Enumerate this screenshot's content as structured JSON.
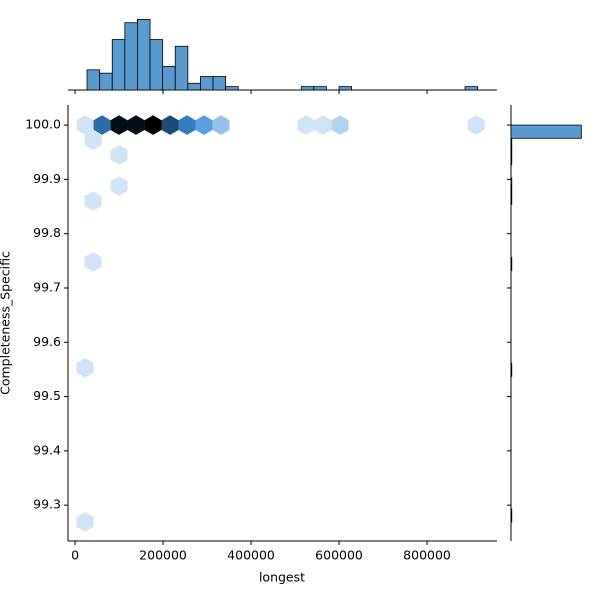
{
  "chart_data": [
    {
      "type": "hexbin",
      "xlabel": "longest",
      "ylabel": "Completeness_Specific",
      "x": [
        22700,
        61400,
        100000,
        138600,
        177300,
        215900,
        254500,
        293200,
        331800,
        525000,
        563600,
        602300,
        911400,
        41000,
        100000,
        100000,
        41000,
        41000,
        22700,
        22700
      ],
      "y": [
        100,
        100,
        100,
        100,
        100,
        100,
        100,
        100,
        100,
        100,
        100,
        100,
        100,
        99.972,
        99.945,
        99.888,
        99.86,
        99.748,
        99.553,
        99.269
      ],
      "values": [
        1,
        8,
        16,
        16,
        18,
        10,
        7,
        5,
        3,
        1,
        1,
        2,
        1,
        1,
        1,
        1,
        1,
        1,
        1,
        1
      ],
      "colors": [
        "#eef5fc",
        "#3a8fd9",
        "#0b2a45",
        "#000000"
      ],
      "xlim": [
        -16000,
        959000
      ],
      "ylim": [
        99.234,
        100.037
      ],
      "xticks": [
        0,
        200000,
        400000,
        600000,
        800000
      ],
      "yticks": [
        99.3,
        99.4,
        99.5,
        99.6,
        99.7,
        99.8,
        99.9,
        {
          "value": 100,
          "label": "100.0"
        }
      ]
    },
    {
      "type": "histogram",
      "color": "#5a9bcf",
      "ylim": [
        0,
        22
      ],
      "bins": [
        27270,
        55906,
        84542,
        113178,
        141814,
        170450,
        199086,
        227722,
        256358,
        284994,
        313630,
        342266,
        370902,
        399538,
        428174,
        456810,
        485446,
        514082,
        542718,
        571354,
        599990,
        628626,
        657262,
        685898,
        714534,
        743170,
        771806,
        800442,
        829078,
        857714,
        886350,
        914986
      ],
      "values": [
        6,
        5,
        15,
        20,
        21,
        15,
        7,
        13,
        2,
        4,
        4,
        1,
        0,
        0,
        0,
        0,
        0,
        1,
        1,
        0,
        1,
        0,
        0,
        0,
        0,
        0,
        0,
        0,
        0,
        0,
        1
      ]
    },
    {
      "type": "histogram",
      "orientation": "horizontal",
      "color": "#5a9bcf",
      "xlim": [
        0,
        100
      ],
      "bins": [
        99.269,
        99.2934,
        99.3177,
        99.3421,
        99.3665,
        99.3909,
        99.4152,
        99.4396,
        99.464,
        99.4883,
        99.5127,
        99.5371,
        99.5614,
        99.5858,
        99.6102,
        99.6346,
        99.6589,
        99.6833,
        99.7077,
        99.732,
        99.7564,
        99.7808,
        99.8051,
        99.8295,
        99.8539,
        99.8783,
        99.9026,
        99.927,
        99.9514,
        99.9757,
        100.0
      ],
      "values": [
        1,
        0,
        0,
        0,
        0,
        0,
        0,
        0,
        0,
        0,
        0,
        1,
        0,
        0,
        0,
        0,
        0,
        0,
        0,
        1,
        0,
        0,
        0,
        0,
        1,
        1,
        0,
        1,
        1,
        89
      ]
    }
  ]
}
